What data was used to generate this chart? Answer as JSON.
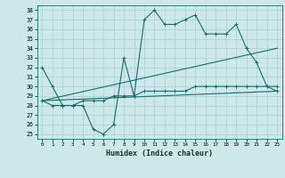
{
  "title": "",
  "xlabel": "Humidex (Indice chaleur)",
  "xlim": [
    -0.5,
    23.5
  ],
  "ylim": [
    24.5,
    38.5
  ],
  "xticks": [
    0,
    1,
    2,
    3,
    4,
    5,
    6,
    7,
    8,
    9,
    10,
    11,
    12,
    13,
    14,
    15,
    16,
    17,
    18,
    19,
    20,
    21,
    22,
    23
  ],
  "yticks": [
    25,
    26,
    27,
    28,
    29,
    30,
    31,
    32,
    33,
    34,
    35,
    36,
    37,
    38
  ],
  "bg_color": "#cde8e8",
  "line_color": "#1a6b6b",
  "grid_color": "#aacfcf",
  "line1_x": [
    0,
    1,
    2,
    3,
    4,
    5,
    6,
    7,
    8,
    9,
    10,
    11,
    12,
    13,
    14,
    15,
    16,
    17,
    18,
    19,
    20,
    21,
    22,
    23
  ],
  "line1_y": [
    32,
    30,
    28,
    28,
    28,
    25.5,
    25,
    26,
    33,
    29,
    37,
    38,
    36.5,
    36.5,
    37,
    37.5,
    35.5,
    35.5,
    35.5,
    36.5,
    34,
    32.5,
    30,
    29.5
  ],
  "line2_x": [
    0,
    1,
    2,
    3,
    4,
    5,
    6,
    7,
    8,
    9,
    10,
    11,
    12,
    13,
    14,
    15,
    16,
    17,
    18,
    19,
    20,
    21,
    22,
    23
  ],
  "line2_y": [
    28.5,
    28,
    28,
    28,
    28.5,
    28.5,
    28.5,
    29,
    29,
    29,
    29.5,
    29.5,
    29.5,
    29.5,
    29.5,
    30,
    30,
    30,
    30,
    30,
    30,
    30,
    30,
    30
  ],
  "line3_x": [
    0,
    23
  ],
  "line3_y": [
    28.5,
    34
  ],
  "line4_x": [
    0,
    23
  ],
  "line4_y": [
    28.5,
    29.5
  ]
}
